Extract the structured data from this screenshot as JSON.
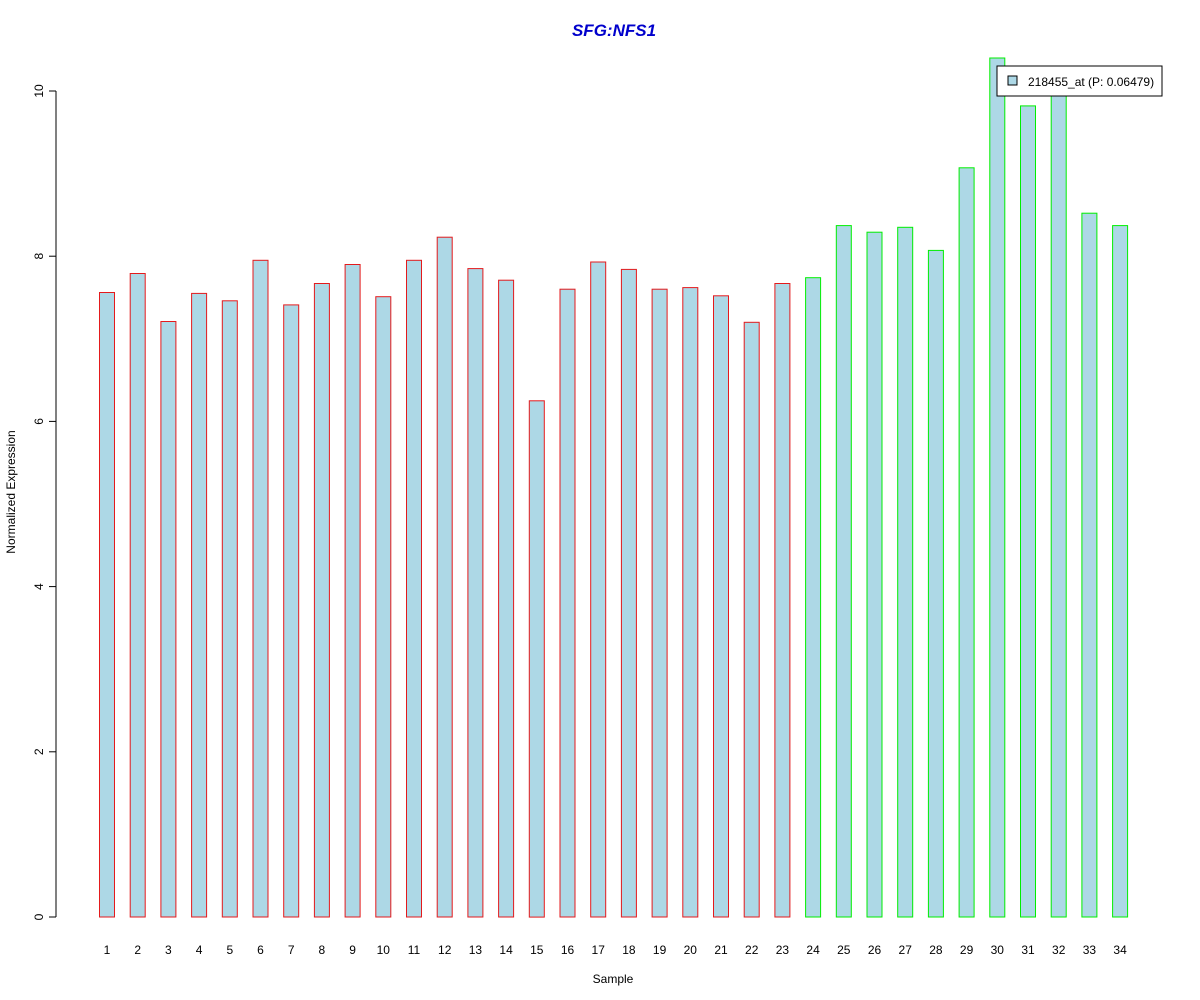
{
  "chart_data": {
    "type": "bar",
    "title": "SFG:NFS1",
    "xlabel": "Sample",
    "ylabel": "Normalized Expression",
    "ylim": [
      0,
      10.4
    ],
    "yticks": [
      0,
      2,
      4,
      6,
      8,
      10
    ],
    "categories": [
      "1",
      "2",
      "3",
      "4",
      "5",
      "6",
      "7",
      "8",
      "9",
      "10",
      "11",
      "12",
      "13",
      "14",
      "15",
      "16",
      "17",
      "18",
      "19",
      "20",
      "21",
      "22",
      "23",
      "24",
      "25",
      "26",
      "27",
      "28",
      "29",
      "30",
      "31",
      "32",
      "33",
      "34"
    ],
    "series": [
      {
        "name": "218455_at (P: 0.06479)",
        "values": [
          7.56,
          7.79,
          7.21,
          7.55,
          7.46,
          7.95,
          7.41,
          7.67,
          7.9,
          7.51,
          7.95,
          8.23,
          7.85,
          7.71,
          6.25,
          7.6,
          7.93,
          7.84,
          7.6,
          7.62,
          7.52,
          7.2,
          7.67,
          7.74,
          8.37,
          8.29,
          8.35,
          8.07,
          9.07,
          10.4,
          9.82,
          10.0,
          8.52,
          8.37
        ]
      }
    ],
    "group_border_colors": [
      "#e41a1c",
      "#e41a1c",
      "#e41a1c",
      "#e41a1c",
      "#e41a1c",
      "#e41a1c",
      "#e41a1c",
      "#e41a1c",
      "#e41a1c",
      "#e41a1c",
      "#e41a1c",
      "#e41a1c",
      "#e41a1c",
      "#e41a1c",
      "#e41a1c",
      "#e41a1c",
      "#e41a1c",
      "#e41a1c",
      "#e41a1c",
      "#e41a1c",
      "#e41a1c",
      "#e41a1c",
      "#e41a1c",
      "#00ee00",
      "#00ee00",
      "#00ee00",
      "#00ee00",
      "#00ee00",
      "#00ee00",
      "#00ee00",
      "#00ee00",
      "#00ee00",
      "#00ee00",
      "#00ee00"
    ],
    "bar_fill": "#add8e6",
    "title_color": "#0000cc",
    "grid": false,
    "legend_position": "top-right"
  }
}
